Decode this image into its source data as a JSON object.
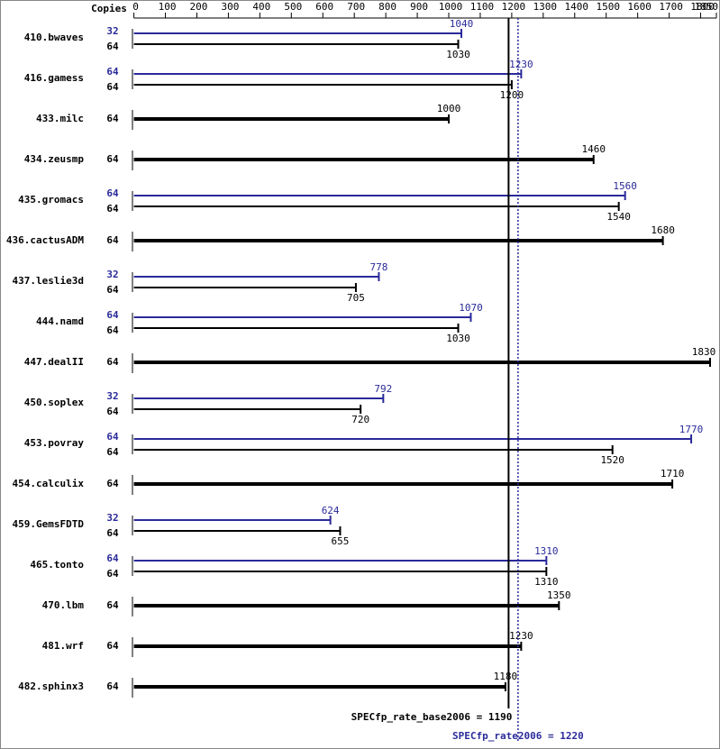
{
  "chart_data": {
    "type": "bar",
    "orientation": "horizontal",
    "copies_header": "Copies",
    "categories": [
      "410.bwaves",
      "416.gamess",
      "433.milc",
      "434.zeusmp",
      "435.gromacs",
      "436.cactusADM",
      "437.leslie3d",
      "444.namd",
      "447.dealII",
      "450.soplex",
      "453.povray",
      "454.calculix",
      "459.GemsFDTD",
      "465.tonto",
      "470.lbm",
      "481.wrf",
      "482.sphinx3"
    ],
    "series": [
      {
        "color": "#2a2a9a",
        "copies": [
          32,
          64,
          null,
          null,
          64,
          null,
          32,
          64,
          null,
          32,
          64,
          null,
          32,
          64,
          null,
          null,
          null
        ],
        "values": [
          1040,
          1230,
          null,
          null,
          1560,
          null,
          778,
          1070,
          null,
          792,
          1770,
          null,
          624,
          1310,
          null,
          null,
          null
        ]
      },
      {
        "color": "#000000",
        "copies": [
          64,
          64,
          64,
          64,
          64,
          64,
          64,
          64,
          64,
          64,
          64,
          64,
          64,
          64,
          64,
          64,
          64
        ],
        "values": [
          1030,
          1200,
          1000,
          1460,
          1540,
          1680,
          705,
          1030,
          1830,
          720,
          1520,
          1710,
          655,
          1310,
          1350,
          1230,
          1180
        ]
      }
    ],
    "reference_lines": [
      {
        "value": 1190,
        "label": "SPECfp_rate_base2006 = 1190",
        "color": "#000000",
        "dashed": false
      },
      {
        "value": 1220,
        "label": "SPECfp_rate2006 = 1220",
        "color": "#2a2a9a",
        "dashed": true
      }
    ],
    "xlim": [
      0,
      1850
    ],
    "xticks": [
      0,
      100,
      200,
      300,
      400,
      500,
      600,
      700,
      800,
      900,
      1000,
      1100,
      1200,
      1300,
      1400,
      1500,
      1600,
      1700,
      1800,
      1850
    ]
  }
}
